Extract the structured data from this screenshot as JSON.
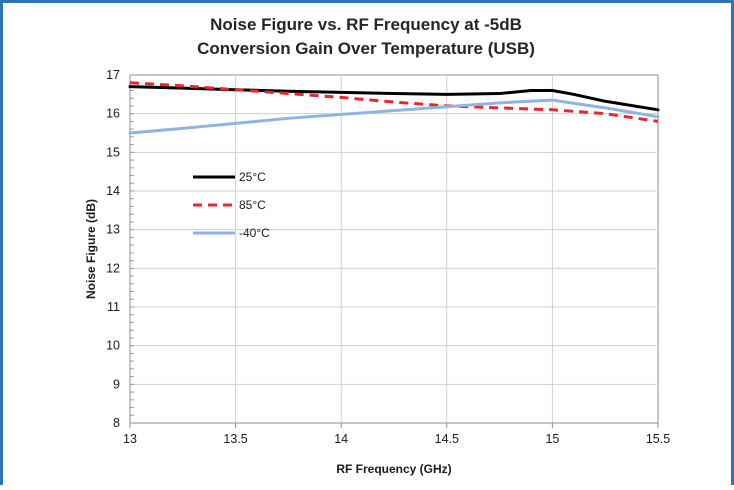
{
  "chart_data": {
    "type": "line",
    "title": [
      "Noise Figure vs. RF Frequency at -5dB",
      "Conversion Gain Over Temperature (USB)"
    ],
    "xlabel": "RF Frequency (GHz)",
    "ylabel": "Noise Figure (dB)",
    "xlim": [
      13,
      15.5
    ],
    "ylim": [
      8,
      17
    ],
    "xticks": [
      "13",
      "13.5",
      "14",
      "14.5",
      "15",
      "15.5"
    ],
    "yticks": [
      "8",
      "9",
      "10",
      "11",
      "12",
      "13",
      "14",
      "15",
      "16",
      "17"
    ],
    "grid": true,
    "legend_position": "left-middle",
    "series": [
      {
        "name": "25°C",
        "color": "#000000",
        "dash": "solid",
        "x": [
          13.0,
          13.25,
          13.5,
          13.75,
          14.0,
          14.25,
          14.5,
          14.75,
          14.9,
          15.0,
          15.1,
          15.25,
          15.5
        ],
        "y": [
          16.7,
          16.66,
          16.62,
          16.58,
          16.55,
          16.52,
          16.5,
          16.52,
          16.6,
          16.6,
          16.5,
          16.32,
          16.1
        ]
      },
      {
        "name": "85°C",
        "color": "#e8272f",
        "dash": "dashed",
        "x": [
          13.0,
          13.25,
          13.5,
          13.75,
          14.0,
          14.25,
          14.5,
          14.75,
          15.0,
          15.25,
          15.5
        ],
        "y": [
          16.8,
          16.72,
          16.62,
          16.52,
          16.42,
          16.3,
          16.2,
          16.15,
          16.1,
          16.0,
          15.8
        ]
      },
      {
        "name": "-40°C",
        "color": "#8fb4e3",
        "dash": "solid",
        "x": [
          13.0,
          13.25,
          13.5,
          13.75,
          14.0,
          14.25,
          14.5,
          14.75,
          15.0,
          15.25,
          15.5
        ],
        "y": [
          15.5,
          15.62,
          15.75,
          15.88,
          15.98,
          16.08,
          16.18,
          16.28,
          16.35,
          16.15,
          15.92
        ]
      }
    ]
  }
}
